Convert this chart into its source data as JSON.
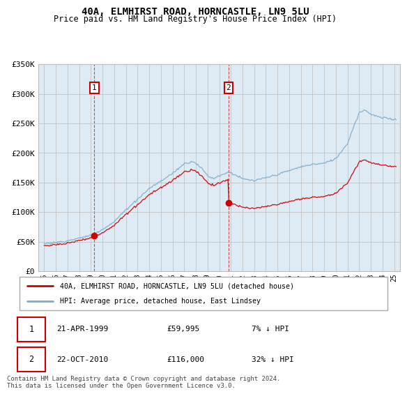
{
  "title": "40A, ELMHIRST ROAD, HORNCASTLE, LN9 5LU",
  "subtitle": "Price paid vs. HM Land Registry's House Price Index (HPI)",
  "red_label": "40A, ELMHIRST ROAD, HORNCASTLE, LN9 5LU (detached house)",
  "blue_label": "HPI: Average price, detached house, East Lindsey",
  "transactions": [
    {
      "num": 1,
      "date": "21-APR-1999",
      "price": "£59,995",
      "hpi": "7% ↓ HPI",
      "year": 1999.3,
      "value": 59995
    },
    {
      "num": 2,
      "date": "22-OCT-2010",
      "price": "£116,000",
      "hpi": "32% ↓ HPI",
      "year": 2010.8,
      "value": 116000
    }
  ],
  "footnote": "Contains HM Land Registry data © Crown copyright and database right 2024.\nThis data is licensed under the Open Government Licence v3.0.",
  "ylim": [
    0,
    350000
  ],
  "yticks": [
    0,
    50000,
    100000,
    150000,
    200000,
    250000,
    300000,
    350000
  ],
  "red_color": "#cc0000",
  "blue_color": "#7aadcf",
  "chart_bg": "#deeaf4",
  "background_color": "#ffffff",
  "grid_color": "#bbbbbb",
  "hpi_anchors_t": [
    1995.0,
    1996.0,
    1997.0,
    1998.0,
    1999.0,
    1999.3,
    2000.0,
    2001.0,
    2002.0,
    2003.0,
    2004.0,
    2005.0,
    2006.0,
    2007.0,
    2007.8,
    2008.5,
    2009.0,
    2009.5,
    2010.0,
    2010.5,
    2010.8,
    2011.0,
    2012.0,
    2013.0,
    2014.0,
    2015.0,
    2016.0,
    2017.0,
    2018.0,
    2019.0,
    2020.0,
    2021.0,
    2021.5,
    2022.0,
    2022.5,
    2023.0,
    2024.0,
    2025.0
  ],
  "hpi_anchors_v": [
    47000,
    49000,
    52000,
    57000,
    62000,
    64500,
    72000,
    85000,
    105000,
    122000,
    140000,
    152000,
    165000,
    183000,
    188000,
    175000,
    163000,
    158000,
    163000,
    166000,
    170000,
    168000,
    158000,
    155000,
    160000,
    165000,
    172000,
    178000,
    182000,
    185000,
    192000,
    218000,
    245000,
    270000,
    275000,
    268000,
    262000,
    260000
  ],
  "sale1_year": 1999.3,
  "sale1_value": 59995,
  "sale2_year": 2010.8,
  "sale2_value": 116000
}
